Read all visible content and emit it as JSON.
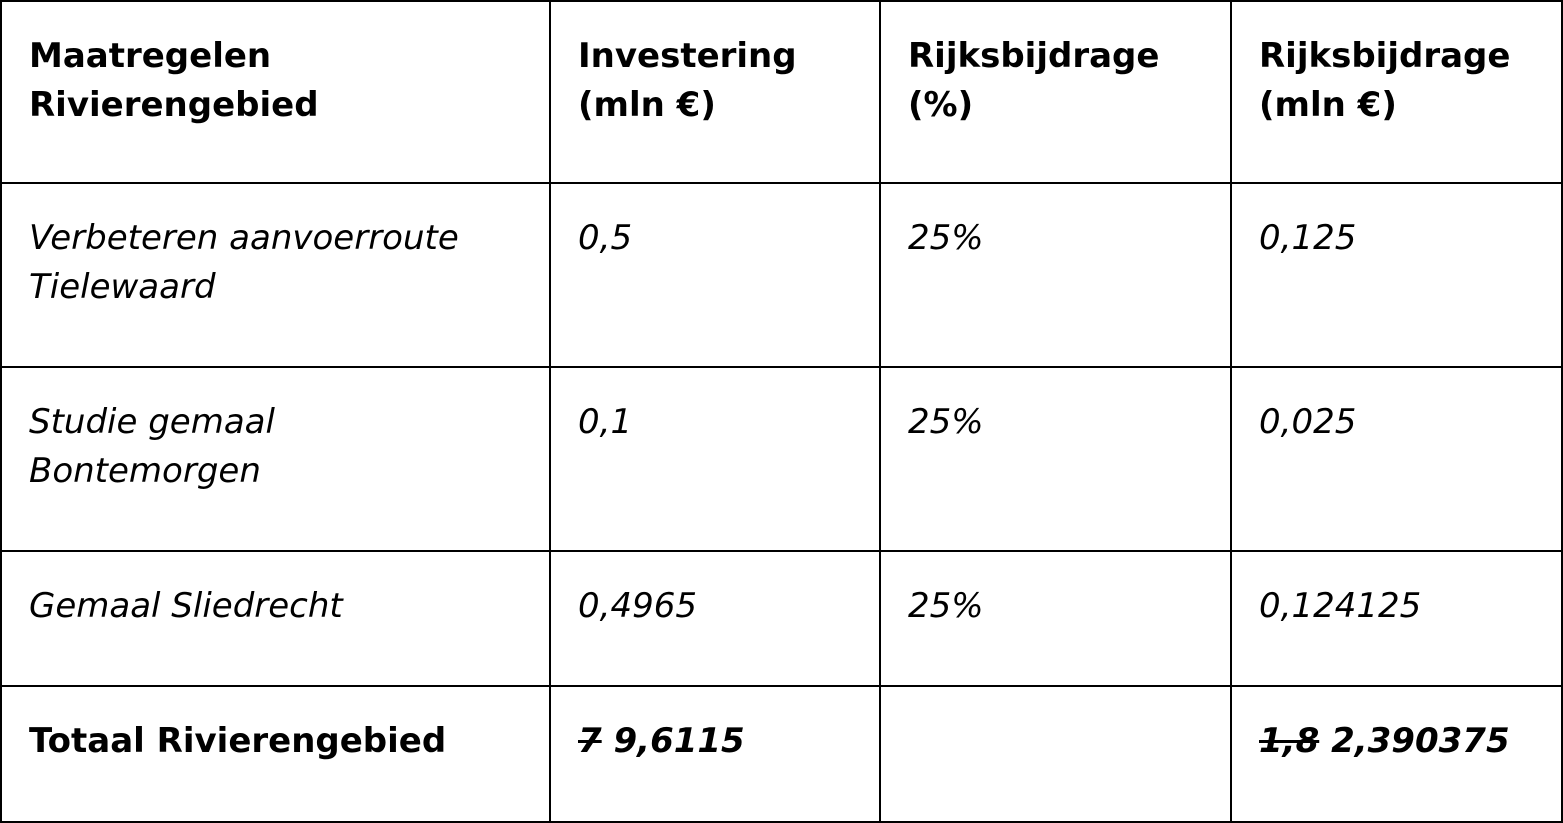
{
  "table": {
    "header": [
      [
        "Maatregelen",
        "Rivierengebied"
      ],
      [
        "Investering",
        "(mln €)"
      ],
      [
        "Rijksbijdrage",
        "(%)"
      ],
      [
        "Rijksbijdrage",
        "(mln €)"
      ]
    ],
    "rows": [
      [
        [
          "Verbeteren aanvoerroute",
          "Tielewaard"
        ],
        [
          "0,5"
        ],
        [
          "25%"
        ],
        [
          "0,125"
        ]
      ],
      [
        [
          "Studie gemaal",
          "Bontemorgen"
        ],
        [
          "0,1"
        ],
        [
          "25%"
        ],
        [
          "0,025"
        ]
      ],
      [
        [
          "Gemaal Sliedrecht"
        ],
        [
          "0,4965"
        ],
        [
          "25%"
        ],
        [
          "0,124125"
        ]
      ]
    ],
    "total": [
      [
        "Totaal Rivierengebied"
      ],
      {
        "struck": "7",
        "text": "9,6115"
      },
      [],
      {
        "struck": "1,8",
        "text": "2,390375"
      }
    ]
  }
}
